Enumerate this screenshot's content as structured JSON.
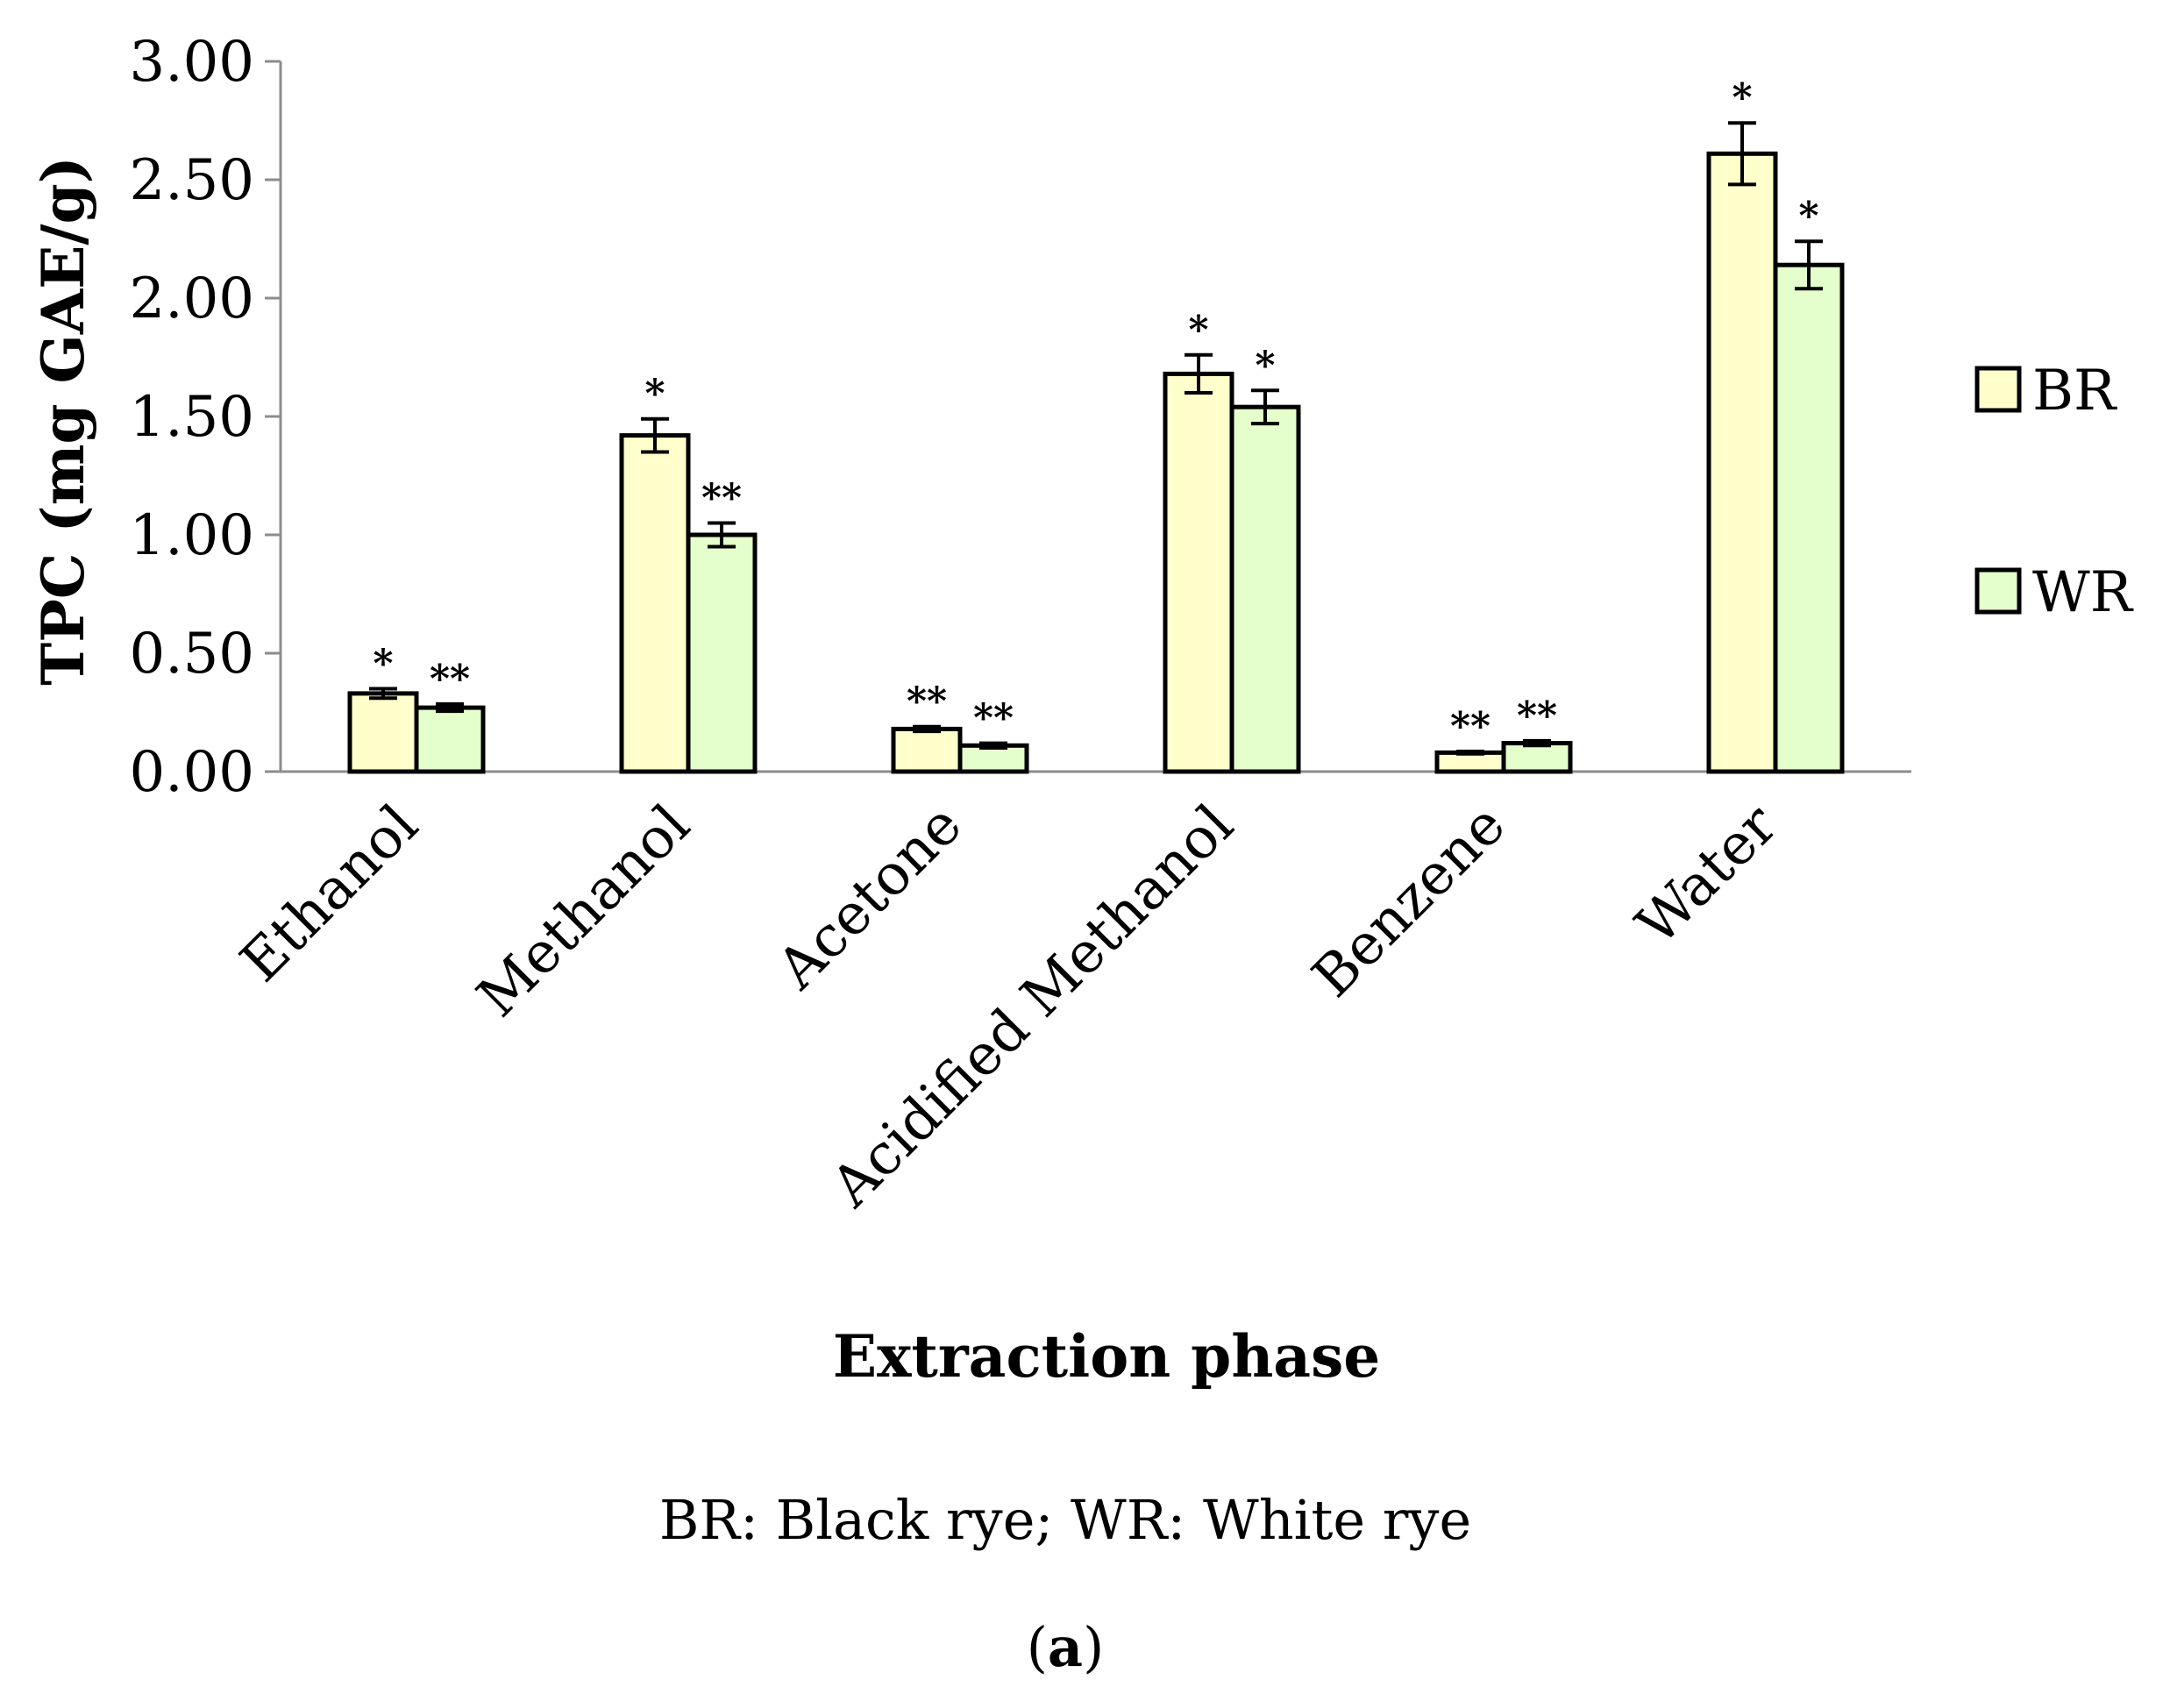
{
  "chart_data": {
    "type": "bar",
    "title": "",
    "xlabel": "Extraction phase",
    "ylabel": "TPC (mg GAE/g)",
    "ylim": [
      0,
      3
    ],
    "yticks": [
      "0.00",
      "0.50",
      "1.00",
      "1.50",
      "2.00",
      "2.50",
      "3.00"
    ],
    "ytick_values": [
      0,
      0.5,
      1.0,
      1.5,
      2.0,
      2.5,
      3.0
    ],
    "categories": [
      "Ethanol",
      "Methanol",
      "Acetone",
      "Acidified Methanol",
      "Benzene",
      "Water"
    ],
    "series": [
      {
        "name": "BR",
        "color": "#FFFFCC",
        "values": [
          0.33,
          1.42,
          0.18,
          1.68,
          0.08,
          2.61
        ],
        "errors": [
          0.02,
          0.07,
          0.01,
          0.08,
          0.005,
          0.13
        ],
        "significance": [
          "*",
          "*",
          "**",
          "*",
          "**",
          "*"
        ]
      },
      {
        "name": "WR",
        "color": "#E5FFCC",
        "values": [
          0.27,
          1.0,
          0.11,
          1.54,
          0.12,
          2.14
        ],
        "errors": [
          0.015,
          0.05,
          0.01,
          0.07,
          0.01,
          0.1
        ],
        "significance": [
          "**",
          "**",
          "**",
          "*",
          "**",
          "*"
        ]
      }
    ],
    "grid": false,
    "legend": "right"
  },
  "caption": "BR: Black rye; WR: White rye",
  "panel_label_open": "(",
  "panel_label_letter": "a",
  "panel_label_close": ")"
}
